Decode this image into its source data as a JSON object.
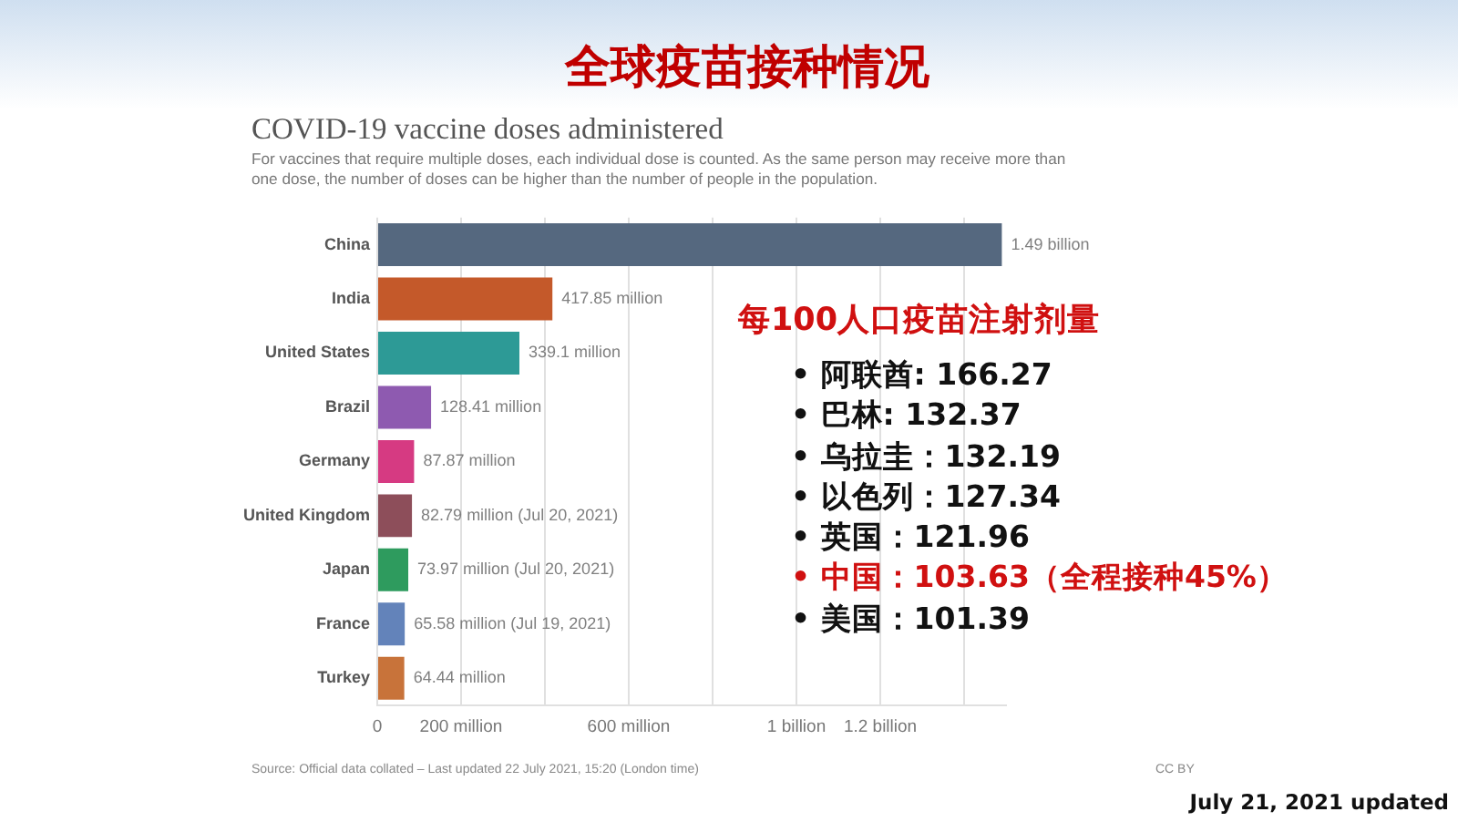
{
  "chart_data": {
    "type": "bar",
    "orientation": "horizontal",
    "title": "全球疫苗接种情况",
    "subtitle": "COVID-19 vaccine doses administered",
    "categories": [
      "China",
      "India",
      "United States",
      "Brazil",
      "Germany",
      "United Kingdom",
      "Japan",
      "France",
      "Turkey"
    ],
    "values": [
      1490000000,
      417850000,
      339100000,
      128410000,
      87870000,
      82790000,
      73970000,
      65580000,
      64440000
    ],
    "colors": [
      "#55687f",
      "#c4592a",
      "#2d9a96",
      "#8e5ab0",
      "#d63a82",
      "#8d4e5a",
      "#2e9b5e",
      "#6383ba",
      "#c8733a"
    ],
    "value_labels": [
      "1.49 billion",
      "417.85 million",
      "339.1 million",
      "128.41 million",
      "87.87 million",
      "82.79 million (Jul 20, 2021)",
      "73.97 million (Jul 20, 2021)",
      "65.58 million (Jul 19, 2021)",
      "64.44 million"
    ],
    "xlim": [
      0,
      1500000000
    ],
    "xticks": [
      0,
      {
        "value": 200000000,
        "label": "200 million"
      },
      {
        "value": 400000000,
        "label": null
      },
      {
        "value": 600000000,
        "label": "600 million"
      },
      {
        "value": 800000000,
        "label": null
      },
      {
        "value": 1000000000,
        "label": "1 billion"
      },
      {
        "value": 1200000000,
        "label": "1.2 billion"
      },
      {
        "value": 1400000000,
        "label": null
      }
    ],
    "grid": "x",
    "annotations": [
      "For vaccines that require multiple doses, each individual dose is counted. As the same person may receive more than one dose, the number of doses can be higher than the number of people in the population.",
      "每100人口疫苗注射剂量",
      "• 阿联酋: 166.27",
      "• 巴林: 132.37",
      "• 乌拉圭：132.19",
      "• 以色列：127.34",
      "• 英国：121.96",
      "• 中国：103.63（全程接种45%）",
      "• 美国：101.39",
      "Source: Official data collated – Last updated 22 July 2021, 15:20 (London time)",
      "CC BY",
      "July 21, 2021 updated"
    ]
  }
}
